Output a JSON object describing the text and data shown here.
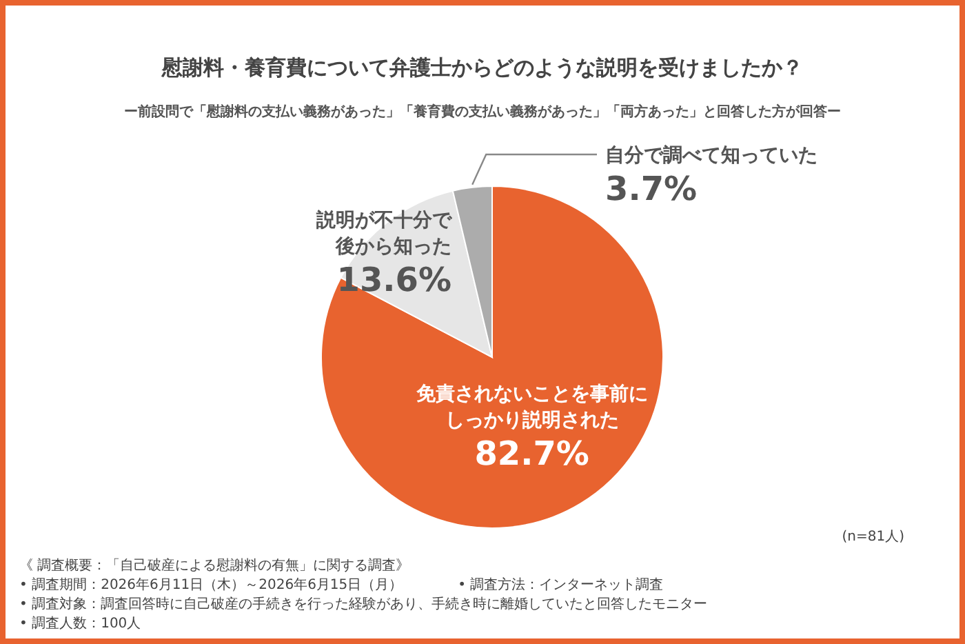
{
  "chart_data": {
    "type": "pie",
    "title": "慰謝料・養育費について弁護士からどのような説明を受けましたか？",
    "subtitle": "ー前設問で「慰謝料の支払い義務があった」「養育費の支払い義務があった」「両方あった」と回答した方が回答ー",
    "categories": [
      "免責されないことを事前にしっかり説明された",
      "説明が不十分で後から知った",
      "自分で調べて知っていた"
    ],
    "values": [
      82.7,
      13.6,
      3.7
    ],
    "colors": [
      "#e8632f",
      "#e6e6e6",
      "#acacac"
    ],
    "value_labels": [
      "82.7%",
      "13.6%",
      "3.7%"
    ],
    "legend": false,
    "annotations": [
      "(n=81人)",
      "《 調査概要：「自己破産による慰謝料の有無」に関する調査》",
      "• 調査期間：2026年6月11日（木）～2026年6月15日（月）",
      "• 調査方法：インターネット調査",
      "• 調査対象：調査回答時に自己破産の手続きを行った経験があり、手続き時に離婚していたと回答したモニター",
      "• 調査人数：100人"
    ]
  }
}
